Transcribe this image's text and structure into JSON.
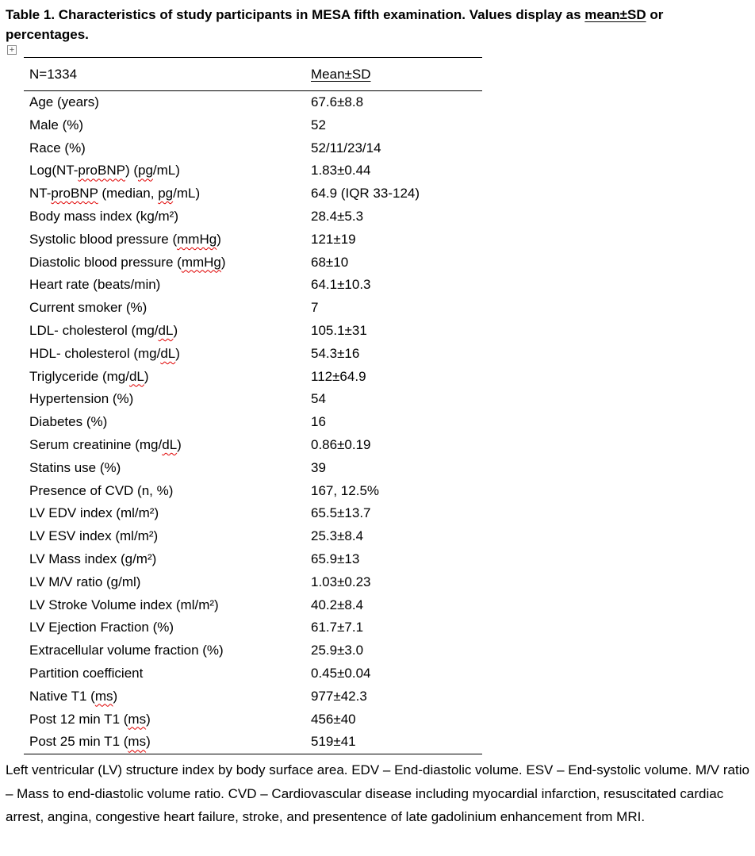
{
  "title": {
    "part1": "Table 1. Characteristics of study participants in MESA fifth examination. Values display as ",
    "underlined": "mean±SD",
    "part2": " or percentages."
  },
  "icons": {
    "table_handle_glyph": "+"
  },
  "table": {
    "header": {
      "col1": "N=1334",
      "col2": "Mean±SD"
    },
    "rows": [
      {
        "label": "Age (years)",
        "value": "67.6±8.8"
      },
      {
        "label": "Male (%)",
        "value": "52"
      },
      {
        "label": "Race (%)",
        "value": "52/11/23/14"
      },
      {
        "label": "Log(NT-proBNP) (pg/mL)",
        "value": "1.83±0.44"
      },
      {
        "label": "NT-proBNP (median, pg/mL)",
        "value": "64.9 (IQR 33-124)"
      },
      {
        "label": "Body mass index (kg/m²)",
        "value": "28.4±5.3"
      },
      {
        "label": "Systolic blood pressure (mmHg)",
        "value": "121±19"
      },
      {
        "label": "Diastolic blood pressure (mmHg)",
        "value": "68±10"
      },
      {
        "label": "Heart rate (beats/min)",
        "value": "64.1±10.3"
      },
      {
        "label": "Current smoker (%)",
        "value": "7"
      },
      {
        "label": "LDL- cholesterol (mg/dL)",
        "value": "105.1±31"
      },
      {
        "label": "HDL- cholesterol (mg/dL)",
        "value": "54.3±16"
      },
      {
        "label": "Triglyceride (mg/dL)",
        "value": "112±64.9"
      },
      {
        "label": "Hypertension (%)",
        "value": "54"
      },
      {
        "label": "Diabetes (%)",
        "value": "16"
      },
      {
        "label": "Serum creatinine (mg/dL)",
        "value": "0.86±0.19"
      },
      {
        "label": "Statins use (%)",
        "value": "39"
      },
      {
        "label": "Presence of CVD (n, %)",
        "value": "167, 12.5%"
      },
      {
        "label": "LV EDV index (ml/m²)",
        "value": "65.5±13.7"
      },
      {
        "label": "LV ESV index (ml/m²)",
        "value": "25.3±8.4"
      },
      {
        "label": "LV Mass index (g/m²)",
        "value": "65.9±13"
      },
      {
        "label": "LV M/V ratio (g/ml)",
        "value": "1.03±0.23"
      },
      {
        "label": "LV Stroke Volume index (ml/m²)",
        "value": "40.2±8.4"
      },
      {
        "label": "LV Ejection Fraction (%)",
        "value": "61.7±7.1"
      },
      {
        "label": "Extracellular volume fraction (%)",
        "value": "25.9±3.0"
      },
      {
        "label": "Partition coefficient",
        "value": "0.45±0.04"
      },
      {
        "label": "Native T1 (ms)",
        "value": "977±42.3"
      },
      {
        "label": "Post 12 min T1 (ms)",
        "value": "456±40"
      },
      {
        "label": "Post 25 min T1 (ms)",
        "value": "519±41"
      }
    ]
  },
  "spellcheck_terms": [
    "proBNP",
    "pg",
    "mmHg",
    "dL",
    "ms"
  ],
  "footnote": "Left ventricular (LV) structure index by body surface area. EDV – End-diastolic volume. ESV – End-systolic volume. M/V ratio – Mass to end-diastolic volume ratio. CVD – Cardiovascular disease including myocardial infarction, resuscitated cardiac arrest, angina, congestive heart failure, stroke, and presentence of late gadolinium enhancement from MRI."
}
